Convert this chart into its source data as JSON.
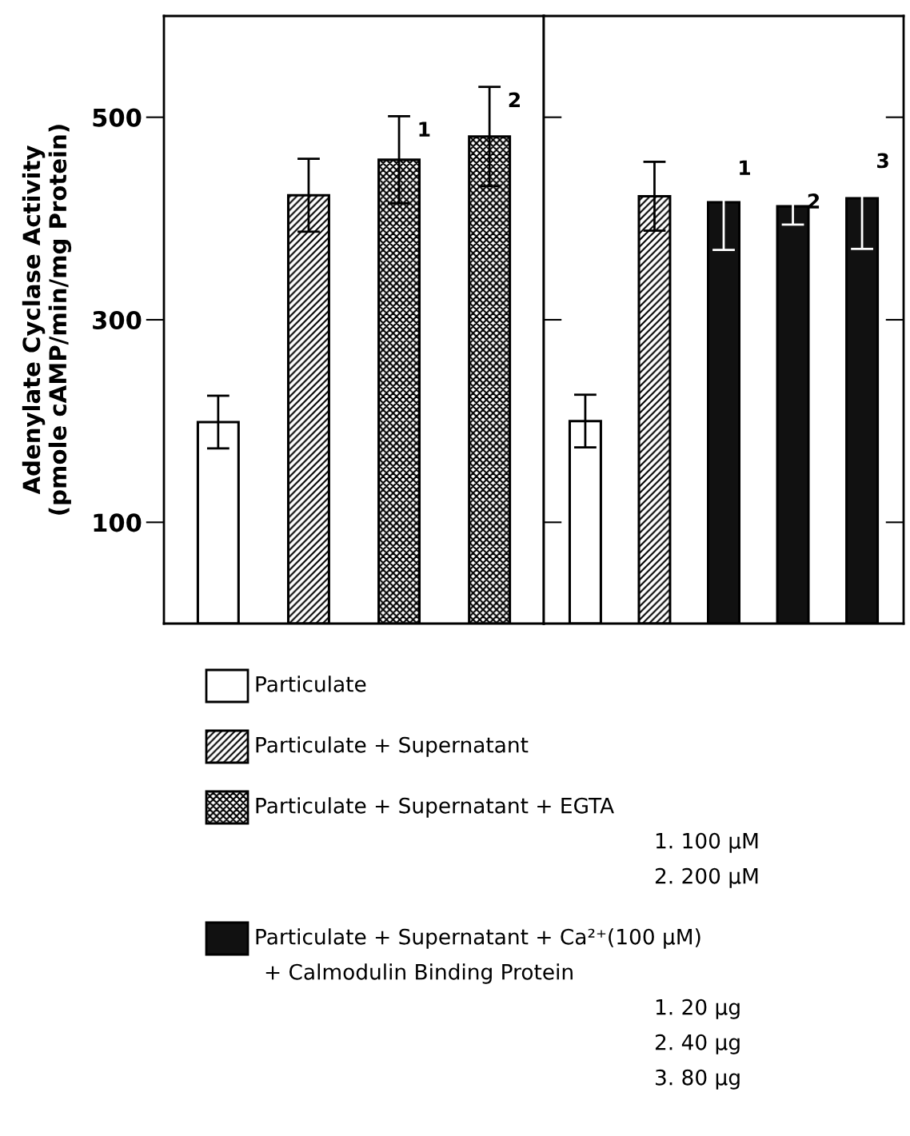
{
  "chart_data": [
    {
      "type": "bar",
      "ylabel": "Adenylate Cyclase Activity\n(pmole cAMP/min/mg Protein)",
      "categories": [
        null,
        null,
        null,
        null
      ],
      "series": [
        {
          "name": "Particulate",
          "color": "#ffffff",
          "values": [
            199,
            null,
            null,
            null
          ],
          "errors": [
            26,
            null,
            null,
            null
          ]
        },
        {
          "name": "Particulate + Supernatant",
          "color": "#000000",
          "values": [
            null,
            423,
            null,
            null
          ],
          "errors": [
            null,
            36,
            null,
            null
          ]
        },
        {
          "name": "Particulate + Supernatant + EGTA\n1. 100 µM\n2. 200 µM",
          "color": "#000000",
          "values": [
            null,
            null,
            458,
            481
          ],
          "errors": [
            null,
            null,
            43,
            49
          ]
        },
        {
          "name": "Particulate + Supernatant + Ca²⁺(100 µM)\n+ Calmodulin Binding Protein\n1. 20 µg\n2. 40 µg\n3. 80 µg",
          "color": "#111111",
          "values": [
            null,
            null,
            null,
            null
          ]
        }
      ],
      "annotations": [
        "1",
        "2"
      ],
      "ylim": [
        0,
        600
      ],
      "yticks": [
        100,
        300,
        500
      ],
      "grid": false,
      "legend": "bottom"
    },
    {
      "type": "bar",
      "categories": [
        null,
        null,
        null,
        null,
        null
      ],
      "values": [
        200,
        422,
        416,
        412,
        420
      ],
      "errors": [
        26,
        34,
        47,
        18,
        50
      ],
      "colors": [
        "#ffffff",
        "#000000",
        "#111111",
        "#111111",
        "#111111"
      ],
      "annotations": [
        "1",
        "2",
        "3"
      ],
      "ylim": [
        0,
        600
      ],
      "yticks": [
        100,
        300,
        500
      ],
      "tick_labels": false,
      "grid": false
    }
  ]
}
